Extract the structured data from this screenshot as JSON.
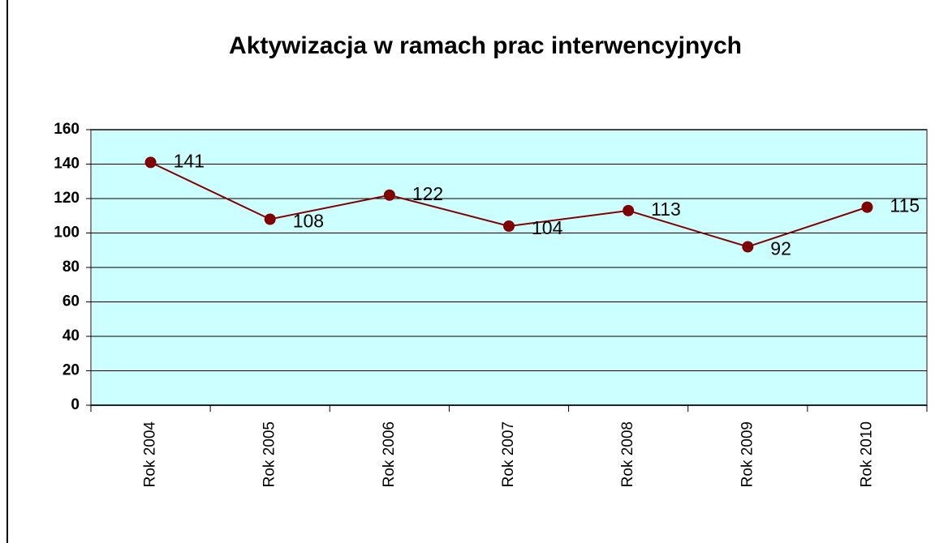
{
  "chart_data": {
    "type": "line",
    "title": "Aktywizacja w ramach prac interwencyjnych",
    "categories": [
      "Rok 2004",
      "Rok 2005",
      "Rok 2006",
      "Rok 2007",
      "Rok 2008",
      "Rok 2009",
      "Rok 2010"
    ],
    "values": [
      141,
      108,
      122,
      104,
      113,
      92,
      115
    ],
    "color": "#800000",
    "ylim": [
      0,
      160
    ],
    "yticks": [
      0,
      20,
      40,
      60,
      80,
      100,
      120,
      140,
      160
    ],
    "grid": true
  }
}
